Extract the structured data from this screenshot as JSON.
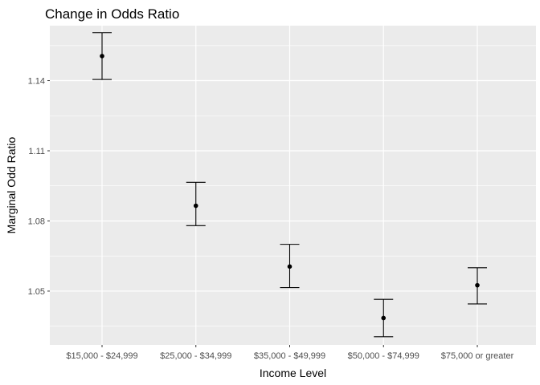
{
  "chart_data": {
    "type": "errorbar",
    "title": "Change in Odds Ratio",
    "xlabel": "Income Level",
    "ylabel": "Marginal Odd Ratio",
    "categories": [
      "$15,000 - $24,999",
      "$25,000 - $34,999",
      "$35,000 - $49,999",
      "$50,000 - $74,999",
      "$75,000 or greater"
    ],
    "estimates": [
      1.1505,
      1.0865,
      1.0605,
      1.0385,
      1.0525
    ],
    "lower": [
      1.1405,
      1.078,
      1.0515,
      1.0305,
      1.0445
    ],
    "upper": [
      1.1605,
      1.0965,
      1.07,
      1.0465,
      1.06
    ],
    "yticks": [
      1.05,
      1.08,
      1.11,
      1.14
    ],
    "ytick_labels": [
      "1.05",
      "1.08",
      "1.11",
      "1.14"
    ],
    "ylim": [
      1.027,
      1.1635
    ],
    "grid": true,
    "legend": "none",
    "colors": {
      "panel": "#ebebeb",
      "gridline": "#ffffff",
      "point": "#000000",
      "errorbar": "#000000",
      "tick_label": "#4d4d4d",
      "axis_tick": "#333333"
    }
  }
}
